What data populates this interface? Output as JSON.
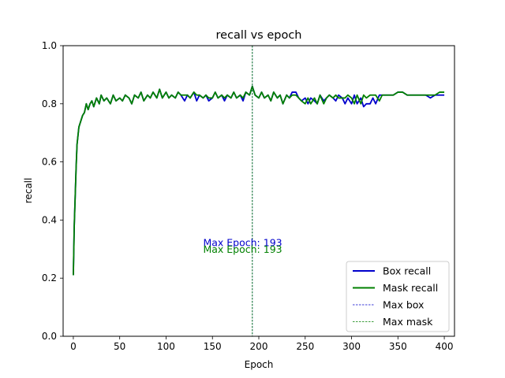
{
  "chart_data": {
    "type": "line",
    "title": "recall vs epoch",
    "xlabel": "Epoch",
    "ylabel": "recall",
    "xlim": [
      -11,
      411
    ],
    "ylim": [
      0.0,
      1.0
    ],
    "x_ticks": [
      0,
      50,
      100,
      150,
      200,
      250,
      300,
      350,
      400
    ],
    "x_tick_labels": [
      "0",
      "50",
      "100",
      "150",
      "200",
      "250",
      "300",
      "350",
      "400"
    ],
    "y_ticks": [
      0.0,
      0.2,
      0.4,
      0.6,
      0.8,
      1.0
    ],
    "y_tick_labels": [
      "0.0",
      "0.2",
      "0.4",
      "0.6",
      "0.8",
      "1.0"
    ],
    "grid": false,
    "legend_position": "lower-right",
    "series": [
      {
        "name": "Box recall",
        "color": "#0000cc",
        "style": "solid",
        "points": [
          [
            0,
            0.21
          ],
          [
            1,
            0.38
          ],
          [
            2,
            0.48
          ],
          [
            3,
            0.58
          ],
          [
            4,
            0.66
          ],
          [
            5,
            0.69
          ],
          [
            6,
            0.72
          ],
          [
            8,
            0.74
          ],
          [
            10,
            0.76
          ],
          [
            12,
            0.77
          ],
          [
            14,
            0.8
          ],
          [
            16,
            0.78
          ],
          [
            18,
            0.8
          ],
          [
            20,
            0.81
          ],
          [
            22,
            0.79
          ],
          [
            25,
            0.82
          ],
          [
            28,
            0.8
          ],
          [
            30,
            0.83
          ],
          [
            33,
            0.81
          ],
          [
            36,
            0.82
          ],
          [
            40,
            0.8
          ],
          [
            43,
            0.83
          ],
          [
            46,
            0.81
          ],
          [
            50,
            0.82
          ],
          [
            53,
            0.81
          ],
          [
            56,
            0.83
          ],
          [
            60,
            0.82
          ],
          [
            63,
            0.8
          ],
          [
            66,
            0.83
          ],
          [
            70,
            0.82
          ],
          [
            73,
            0.84
          ],
          [
            76,
            0.81
          ],
          [
            80,
            0.83
          ],
          [
            83,
            0.82
          ],
          [
            86,
            0.84
          ],
          [
            90,
            0.82
          ],
          [
            93,
            0.85
          ],
          [
            96,
            0.82
          ],
          [
            100,
            0.84
          ],
          [
            103,
            0.82
          ],
          [
            106,
            0.83
          ],
          [
            110,
            0.82
          ],
          [
            113,
            0.84
          ],
          [
            116,
            0.83
          ],
          [
            120,
            0.81
          ],
          [
            123,
            0.83
          ],
          [
            126,
            0.82
          ],
          [
            130,
            0.84
          ],
          [
            133,
            0.81
          ],
          [
            136,
            0.83
          ],
          [
            140,
            0.82
          ],
          [
            143,
            0.83
          ],
          [
            146,
            0.81
          ],
          [
            150,
            0.82
          ],
          [
            153,
            0.84
          ],
          [
            156,
            0.82
          ],
          [
            160,
            0.83
          ],
          [
            163,
            0.81
          ],
          [
            166,
            0.83
          ],
          [
            170,
            0.82
          ],
          [
            173,
            0.84
          ],
          [
            176,
            0.82
          ],
          [
            180,
            0.83
          ],
          [
            183,
            0.81
          ],
          [
            186,
            0.84
          ],
          [
            190,
            0.83
          ],
          [
            193,
            0.86
          ],
          [
            196,
            0.83
          ],
          [
            200,
            0.82
          ],
          [
            203,
            0.84
          ],
          [
            206,
            0.82
          ],
          [
            210,
            0.83
          ],
          [
            213,
            0.81
          ],
          [
            216,
            0.84
          ],
          [
            220,
            0.82
          ],
          [
            223,
            0.83
          ],
          [
            226,
            0.8
          ],
          [
            230,
            0.83
          ],
          [
            233,
            0.82
          ],
          [
            236,
            0.84
          ],
          [
            240,
            0.84
          ],
          [
            243,
            0.82
          ],
          [
            246,
            0.81
          ],
          [
            250,
            0.82
          ],
          [
            253,
            0.8
          ],
          [
            256,
            0.82
          ],
          [
            260,
            0.81
          ],
          [
            263,
            0.8
          ],
          [
            266,
            0.83
          ],
          [
            270,
            0.81
          ],
          [
            273,
            0.82
          ],
          [
            276,
            0.83
          ],
          [
            280,
            0.82
          ],
          [
            283,
            0.81
          ],
          [
            286,
            0.83
          ],
          [
            290,
            0.82
          ],
          [
            293,
            0.8
          ],
          [
            296,
            0.82
          ],
          [
            300,
            0.8
          ],
          [
            303,
            0.83
          ],
          [
            306,
            0.8
          ],
          [
            310,
            0.82
          ],
          [
            313,
            0.79
          ],
          [
            316,
            0.8
          ],
          [
            320,
            0.8
          ],
          [
            323,
            0.82
          ],
          [
            326,
            0.8
          ],
          [
            330,
            0.83
          ],
          [
            333,
            0.83
          ],
          [
            336,
            0.83
          ],
          [
            340,
            0.83
          ],
          [
            345,
            0.83
          ],
          [
            350,
            0.84
          ],
          [
            355,
            0.84
          ],
          [
            360,
            0.83
          ],
          [
            365,
            0.83
          ],
          [
            370,
            0.83
          ],
          [
            375,
            0.83
          ],
          [
            380,
            0.83
          ],
          [
            385,
            0.82
          ],
          [
            390,
            0.83
          ],
          [
            395,
            0.83
          ],
          [
            400,
            0.83
          ]
        ]
      },
      {
        "name": "Mask recall",
        "color": "#008000",
        "style": "solid",
        "points": [
          [
            0,
            0.21
          ],
          [
            1,
            0.38
          ],
          [
            2,
            0.48
          ],
          [
            3,
            0.58
          ],
          [
            4,
            0.66
          ],
          [
            5,
            0.69
          ],
          [
            6,
            0.72
          ],
          [
            8,
            0.74
          ],
          [
            10,
            0.76
          ],
          [
            12,
            0.77
          ],
          [
            14,
            0.8
          ],
          [
            16,
            0.78
          ],
          [
            18,
            0.8
          ],
          [
            20,
            0.81
          ],
          [
            22,
            0.79
          ],
          [
            25,
            0.82
          ],
          [
            28,
            0.8
          ],
          [
            30,
            0.83
          ],
          [
            33,
            0.81
          ],
          [
            36,
            0.82
          ],
          [
            40,
            0.8
          ],
          [
            43,
            0.83
          ],
          [
            46,
            0.81
          ],
          [
            50,
            0.82
          ],
          [
            53,
            0.81
          ],
          [
            56,
            0.83
          ],
          [
            60,
            0.82
          ],
          [
            63,
            0.8
          ],
          [
            66,
            0.83
          ],
          [
            70,
            0.82
          ],
          [
            73,
            0.84
          ],
          [
            76,
            0.81
          ],
          [
            80,
            0.83
          ],
          [
            83,
            0.82
          ],
          [
            86,
            0.84
          ],
          [
            90,
            0.82
          ],
          [
            93,
            0.85
          ],
          [
            96,
            0.82
          ],
          [
            100,
            0.84
          ],
          [
            103,
            0.82
          ],
          [
            106,
            0.83
          ],
          [
            110,
            0.82
          ],
          [
            113,
            0.84
          ],
          [
            116,
            0.83
          ],
          [
            120,
            0.83
          ],
          [
            123,
            0.83
          ],
          [
            126,
            0.82
          ],
          [
            130,
            0.84
          ],
          [
            133,
            0.83
          ],
          [
            136,
            0.83
          ],
          [
            140,
            0.82
          ],
          [
            143,
            0.83
          ],
          [
            146,
            0.82
          ],
          [
            150,
            0.82
          ],
          [
            153,
            0.84
          ],
          [
            156,
            0.82
          ],
          [
            160,
            0.83
          ],
          [
            163,
            0.82
          ],
          [
            166,
            0.83
          ],
          [
            170,
            0.82
          ],
          [
            173,
            0.84
          ],
          [
            176,
            0.82
          ],
          [
            180,
            0.83
          ],
          [
            183,
            0.82
          ],
          [
            186,
            0.84
          ],
          [
            190,
            0.83
          ],
          [
            193,
            0.86
          ],
          [
            196,
            0.83
          ],
          [
            200,
            0.82
          ],
          [
            203,
            0.84
          ],
          [
            206,
            0.82
          ],
          [
            210,
            0.83
          ],
          [
            213,
            0.81
          ],
          [
            216,
            0.84
          ],
          [
            220,
            0.82
          ],
          [
            223,
            0.83
          ],
          [
            226,
            0.8
          ],
          [
            230,
            0.83
          ],
          [
            233,
            0.82
          ],
          [
            236,
            0.83
          ],
          [
            240,
            0.83
          ],
          [
            243,
            0.82
          ],
          [
            246,
            0.81
          ],
          [
            250,
            0.8
          ],
          [
            253,
            0.82
          ],
          [
            256,
            0.8
          ],
          [
            260,
            0.82
          ],
          [
            263,
            0.8
          ],
          [
            266,
            0.83
          ],
          [
            270,
            0.8
          ],
          [
            273,
            0.82
          ],
          [
            276,
            0.83
          ],
          [
            280,
            0.82
          ],
          [
            283,
            0.83
          ],
          [
            286,
            0.82
          ],
          [
            290,
            0.82
          ],
          [
            293,
            0.82
          ],
          [
            296,
            0.83
          ],
          [
            300,
            0.82
          ],
          [
            303,
            0.8
          ],
          [
            306,
            0.83
          ],
          [
            310,
            0.8
          ],
          [
            313,
            0.83
          ],
          [
            316,
            0.82
          ],
          [
            320,
            0.83
          ],
          [
            323,
            0.83
          ],
          [
            326,
            0.83
          ],
          [
            330,
            0.81
          ],
          [
            333,
            0.83
          ],
          [
            336,
            0.83
          ],
          [
            340,
            0.83
          ],
          [
            345,
            0.83
          ],
          [
            350,
            0.84
          ],
          [
            355,
            0.84
          ],
          [
            360,
            0.83
          ],
          [
            365,
            0.83
          ],
          [
            370,
            0.83
          ],
          [
            375,
            0.83
          ],
          [
            380,
            0.83
          ],
          [
            385,
            0.83
          ],
          [
            390,
            0.83
          ],
          [
            395,
            0.84
          ],
          [
            400,
            0.84
          ]
        ]
      }
    ],
    "vlines": [
      {
        "name": "Max box",
        "x": 193,
        "color": "#0000cc",
        "style": "dashed"
      },
      {
        "name": "Max mask",
        "x": 193,
        "color": "#008000",
        "style": "dashed"
      }
    ],
    "annotations": [
      {
        "text": "Max Epoch: 193",
        "x": 140,
        "y": 0.31,
        "color": "#0000cc"
      },
      {
        "text": "Max Epoch: 193",
        "x": 140,
        "y": 0.287,
        "color": "#008000"
      }
    ]
  }
}
